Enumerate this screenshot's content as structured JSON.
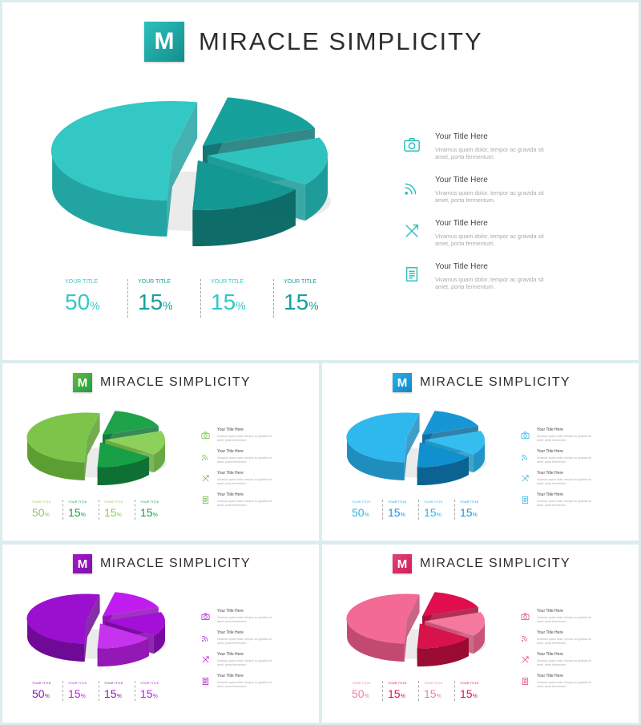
{
  "brand_name": "MIRACLE SIMPLICITY",
  "logo_letter": "M",
  "legend_items": [
    {
      "icon": "camera-icon",
      "title": "Your Title Here",
      "desc": "Vivamus quam dolor, tempor ac gravida sit amet, porta fermentum."
    },
    {
      "icon": "wifi-icon",
      "title": "Your Title Here",
      "desc": "Vivamus quam dolor, tempor ac gravida sit amet, porta fermentum."
    },
    {
      "icon": "airplane-icon",
      "title": "Your Title Here",
      "desc": "Vivamus quam dolor, tempor ac gravida sit amet, porta fermentum."
    },
    {
      "icon": "document-icon",
      "title": "Your Title Here",
      "desc": "Vivamus quam dolor, tempor ac gravida sit amet, porta fermentum."
    }
  ],
  "chart_data": {
    "type": "pie",
    "categories": [
      "YOUR TITLE",
      "YOUR TITLE",
      "YOUR TITLE",
      "YOUR TITLE"
    ],
    "values": [
      50,
      15,
      15,
      15
    ],
    "unit": "%"
  },
  "themes": [
    {
      "id": "teal",
      "logo": "#19a9a4",
      "accent": "#2cc0bd",
      "dark": "#138f8b",
      "colors": [
        "#34c8c5",
        "#17a19d",
        "#2fc3c0",
        "#149894"
      ],
      "sides": [
        "#22a5a2",
        "#0f7472",
        "#1d9c99",
        "#0e6c69"
      ],
      "values": [
        "#34c8c5",
        "#17a19d",
        "#34c8c5",
        "#17a19d"
      ]
    },
    {
      "id": "green",
      "logo": "#5aab2e",
      "accent": "#66b93e",
      "dark": "#1e9e45",
      "colors": [
        "#7cc54a",
        "#1ea34b",
        "#8dd05c",
        "#17a046"
      ],
      "sides": [
        "#5d9e33",
        "#12773a",
        "#6aa942",
        "#0f7034"
      ],
      "values": [
        "#8dc85e",
        "#17a046",
        "#8dc85e",
        "#17a046"
      ]
    },
    {
      "id": "blue",
      "logo": "#1e93cf",
      "accent": "#27b0e8",
      "dark": "#1586c4",
      "colors": [
        "#2fb8ee",
        "#1796d5",
        "#35bdf0",
        "#1190cf"
      ],
      "sides": [
        "#1f8dbd",
        "#0e6a99",
        "#2196c6",
        "#0c6391"
      ],
      "values": [
        "#2fb3e8",
        "#1796d5",
        "#2fb3e8",
        "#1796d5"
      ]
    },
    {
      "id": "purple",
      "logo": "#8e1cb0",
      "accent": "#a316c8",
      "dark": "#7e14a8",
      "colors": [
        "#9b0fcf",
        "#c01cf0",
        "#a510d8",
        "#c633ee"
      ],
      "sides": [
        "#6f0a96",
        "#8f11b5",
        "#780b9e",
        "#9418b5"
      ],
      "values": [
        "#8e14b8",
        "#c01cf0",
        "#8e14b8",
        "#c01cf0"
      ]
    },
    {
      "id": "pink",
      "logo": "#d63468",
      "accent": "#e0407c",
      "dark": "#d21f56",
      "colors": [
        "#f36a95",
        "#e00e4d",
        "#f5789f",
        "#d8124a"
      ],
      "sides": [
        "#c24a71",
        "#a30a37",
        "#c75478",
        "#9c0b33"
      ],
      "values": [
        "#f07fa2",
        "#e00e4d",
        "#f07fa2",
        "#e00e4d"
      ]
    }
  ]
}
